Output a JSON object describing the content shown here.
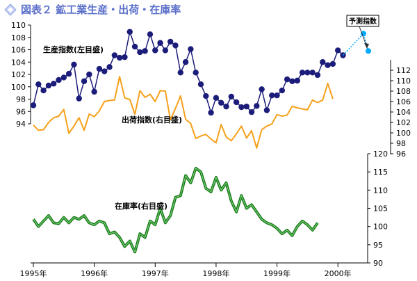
{
  "chart_data": {
    "type": "line",
    "title": "図表２ 鉱工業生産・出荷・在庫率",
    "x_axis": {
      "min": 1995.0,
      "max": 2000.5,
      "tick_labels": [
        "1995年",
        "1996年",
        "1997年",
        "1998年",
        "1999年",
        "2000年"
      ],
      "tick_values": [
        1995,
        1996,
        1997,
        1998,
        1999,
        2000
      ]
    },
    "left_axis": {
      "range": [
        94,
        110
      ],
      "ticks": [
        94,
        96,
        98,
        100,
        102,
        104,
        106,
        108,
        110
      ]
    },
    "right_axis_upper": {
      "range": [
        96,
        114
      ],
      "ticks": [
        96,
        98,
        100,
        102,
        104,
        106,
        108,
        110,
        112
      ]
    },
    "right_axis_lower": {
      "range": [
        90,
        120
      ],
      "ticks": [
        90,
        95,
        100,
        105,
        110,
        115,
        120
      ]
    },
    "series": [
      {
        "name": "生産指数(左目盛)",
        "axis": "left",
        "color": "#1c1c7a",
        "marker": "circle",
        "x_start": 1995.0,
        "x_step": 0.08333,
        "values": [
          97.0,
          100.4,
          99.4,
          100.2,
          100.5,
          101.1,
          101.5,
          102.1,
          103.6,
          98.1,
          100.9,
          102.0,
          99.2,
          102.9,
          102.5,
          103.2,
          105.1,
          104.7,
          104.8,
          108.9,
          106.5,
          105.6,
          105.8,
          108.5,
          105.9,
          107.1,
          105.9,
          107.3,
          106.7,
          102.3,
          104.0,
          106.1,
          102.3,
          100.4,
          98.5,
          95.8,
          98.2,
          97.4,
          96.8,
          98.4,
          97.5,
          96.7,
          96.8,
          95.9,
          96.9,
          99.6,
          96.2,
          98.6,
          98.6,
          99.4,
          101.2,
          100.9,
          101.0,
          102.3,
          102.3,
          102.3,
          101.9,
          104.0,
          103.5,
          103.7,
          105.9,
          105.1
        ]
      },
      {
        "name": "予測指数",
        "axis": "left",
        "color": "#00aaff",
        "marker": "circle",
        "dashed": true,
        "x": [
          2000.42,
          2000.5
        ],
        "values": [
          108.6,
          105.8
        ]
      },
      {
        "name": "出荷指数(右目盛)",
        "axis": "right_upper",
        "color": "#f7a01b",
        "x_start": 1995.0,
        "x_step": 0.08333,
        "values": [
          101.5,
          100.5,
          100.6,
          102.0,
          102.9,
          103.2,
          104.5,
          99.9,
          101.3,
          102.9,
          100.5,
          103.6,
          103.1,
          104.2,
          106.0,
          106.2,
          106.3,
          110.8,
          106.7,
          106.4,
          103.6,
          108.1,
          106.8,
          107.4,
          106.0,
          108.1,
          108.0,
          102.5,
          104.7,
          107.1,
          102.6,
          101.8,
          98.9,
          99.4,
          99.7,
          98.8,
          98.1,
          101.6,
          99.2,
          98.5,
          99.8,
          101.3,
          99.0,
          100.4,
          97.1,
          100.6,
          101.3,
          101.7,
          103.5,
          103.2,
          103.4,
          105.1,
          104.8,
          104.6,
          104.4,
          106.3,
          105.8,
          106.3,
          109.5,
          106.5
        ]
      },
      {
        "name": "在庫率(右目盛)",
        "axis": "right_lower",
        "color": "#1e7a1e",
        "x_start": 1995.0,
        "x_step": 0.08333,
        "values": [
          102.0,
          100.0,
          101.5,
          103.0,
          101.0,
          100.8,
          102.5,
          101.0,
          102.5,
          102.0,
          103.0,
          101.0,
          100.5,
          101.5,
          101.0,
          98.0,
          98.5,
          97.0,
          94.5,
          96.0,
          93.0,
          98.0,
          97.0,
          101.5,
          100.5,
          105.0,
          101.0,
          103.0,
          108.0,
          108.5,
          114.0,
          112.0,
          116.0,
          115.0,
          110.5,
          109.5,
          113.5,
          110.0,
          112.0,
          107.0,
          104.0,
          108.5,
          105.0,
          106.0,
          104.0,
          102.0,
          101.0,
          100.5,
          99.5,
          98.0,
          99.0,
          97.5,
          100.0,
          101.5,
          100.5,
          99.0,
          101.0
        ]
      }
    ],
    "annotations": {
      "production_label": "生産指数(左目盛)",
      "shipments_label": "出荷指数(右目盛)",
      "inventory_label": "在庫率(右目盛)",
      "forecast_label": "予測指数"
    }
  }
}
